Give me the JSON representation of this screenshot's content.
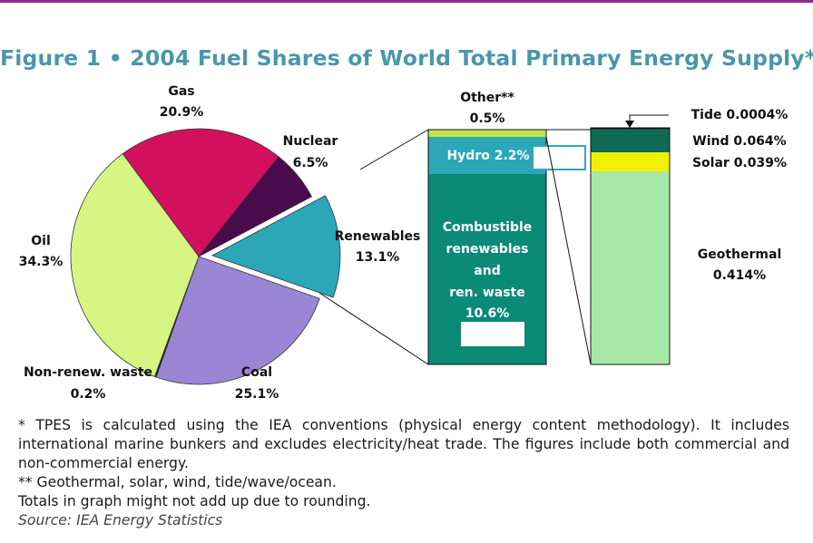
{
  "title": "Figure 1 • 2004 Fuel Shares of World Total Primary Energy Supply*",
  "chart_data": [
    {
      "type": "pie",
      "slices": [
        {
          "label": "Gas",
          "value": 20.9,
          "value_text": "20.9%",
          "color": "#d4105e"
        },
        {
          "label": "Nuclear",
          "value": 6.5,
          "value_text": "6.5%",
          "color": "#4a0b4d"
        },
        {
          "label": "Renewables",
          "value": 13.1,
          "value_text": "13.1%",
          "color": "#2ba7b8",
          "exploded": true
        },
        {
          "label": "Coal",
          "value": 25.1,
          "value_text": "25.1%",
          "color": "#9b86d6"
        },
        {
          "label": "Non-renew. waste",
          "value": 0.2,
          "value_text": "0.2%",
          "color": "#222222"
        },
        {
          "label": "Oil",
          "value": 34.3,
          "value_text": "34.3%",
          "color": "#d6f583"
        }
      ]
    },
    {
      "type": "bar",
      "stacked": true,
      "segments": [
        {
          "label": "Combustible renewables and ren. waste",
          "value": 10.6,
          "value_text": "10.6%",
          "color": "#0b8a76"
        },
        {
          "label": "Hydro",
          "value": 2.2,
          "value_text": "2.2%",
          "color": "#2ba7b8"
        },
        {
          "label": "Other**",
          "value": 0.5,
          "value_text": "0.5%",
          "color": "#c2e44f"
        }
      ]
    },
    {
      "type": "bar",
      "stacked": true,
      "segments": [
        {
          "label": "Geothermal",
          "value": 0.414,
          "value_text": "0.414%",
          "color": "#a7e8a7"
        },
        {
          "label": "Solar",
          "value": 0.039,
          "value_text": "0.039%",
          "color": "#f0f000"
        },
        {
          "label": "Wind",
          "value": 0.064,
          "value_text": "0.064%",
          "color": "#0e6a55"
        },
        {
          "label": "Tide",
          "value": 0.0004,
          "value_text": "0.0004%",
          "color": "#000000"
        }
      ]
    }
  ],
  "labels": {
    "gas": "Gas",
    "gas_val": "20.9%",
    "nuclear": "Nuclear",
    "nuclear_val": "6.5%",
    "renewables": "Renewables",
    "renewables_val": "13.1%",
    "oil": "Oil",
    "oil_val": "34.3%",
    "coal": "Coal",
    "coal_val": "25.1%",
    "waste": "Non-renew. waste",
    "waste_val": "0.2%",
    "other": "Other**",
    "other_val": "0.5%",
    "hydro": "Hydro 2.2%",
    "comb_1": "Combustible",
    "comb_2": "renewables",
    "comb_3": "and",
    "comb_4": "ren. waste",
    "comb_val": "10.6%",
    "tide": "Tide 0.0004%",
    "wind": "Wind 0.064%",
    "solar": "Solar 0.039%",
    "geothermal": "Geothermal",
    "geothermal_val": "0.414%"
  },
  "notes": {
    "footnote1": "* TPES is calculated using the IEA conventions (physical energy content methodology). It includes international marine bunkers and excludes electricity/heat trade. The figures include both commercial and non-commercial energy.",
    "footnote2": "** Geothermal, solar, wind, tide/wave/ocean.",
    "rounding": "Totals in graph might not add up due to rounding.",
    "source": "Source: IEA Energy Statistics"
  },
  "colors": {
    "title": "#4a96ab",
    "rule": "#8e2a8b"
  }
}
